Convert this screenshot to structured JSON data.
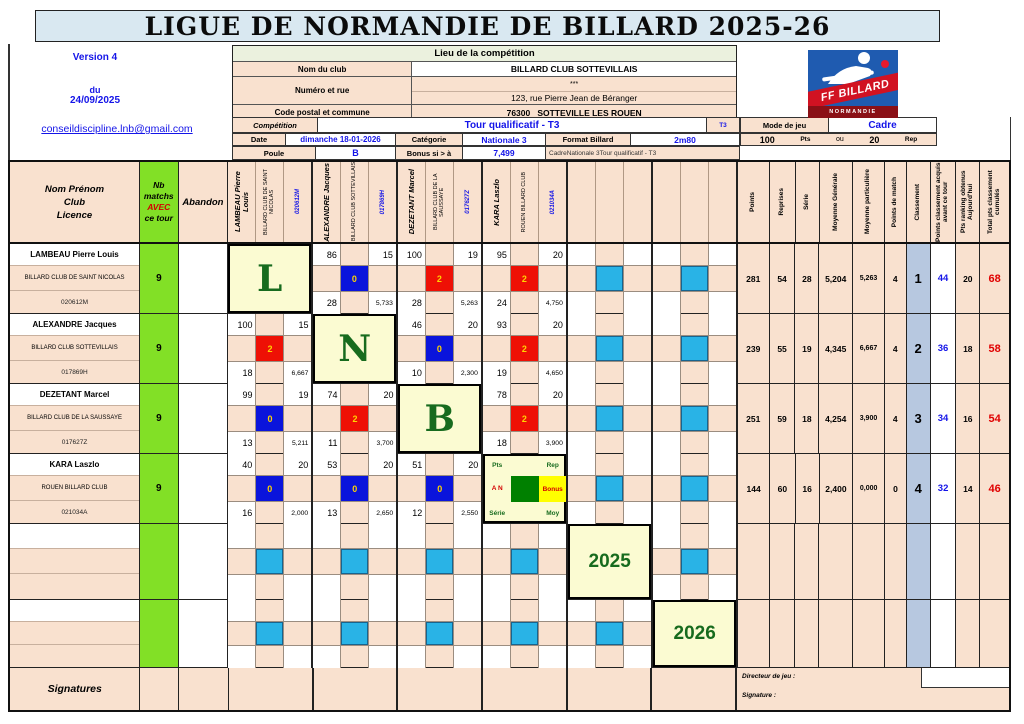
{
  "title": "LIGUE DE NORMANDIE DE BILLARD 2025-26",
  "version": {
    "line1": "Version 4",
    "line2": "du",
    "line3": "24/09/2025"
  },
  "email": "conseildiscipline.lnb@gmail.com",
  "venue": {
    "header": "Lieu de la compétition",
    "club_label": "Nom du club",
    "club": "BILLARD CLUB SOTTEVILLAIS",
    "street_label": "Numéro et rue",
    "street1": "***",
    "street2": "123, rue Pierre Jean de Béranger",
    "city_label": "Code postal et commune",
    "city": "76300   SOTTEVILLE LES ROUEN"
  },
  "competition": {
    "label": "Compétition",
    "value": "Tour qualificatif - T3",
    "tag": "T3",
    "date_label": "Date",
    "date": "dimanche 18-01-2026",
    "category_label": "Catégorie",
    "category": "Nationale 3",
    "format_label": "Format Billard",
    "format": "2m80",
    "poule_label": "Poule",
    "poule": "B",
    "bonus_label": "Bonus si > à",
    "bonus": "7,499",
    "note": "CadreNationale 3Tour qualificatif - T3",
    "mode_label": "Mode de jeu",
    "mode": "Cadre",
    "dist_pts": "100",
    "pts_label": "Pts",
    "ou": "ou",
    "dist_rep": "20",
    "rep_label": "Rep"
  },
  "logo": {
    "line1": "FF BILLARD",
    "line2": "NORMANDIE"
  },
  "colors": {
    "peach": "#f9e1cf",
    "green": "#82e026",
    "pale_yellow": "#fbfbd2",
    "cyan": "#29b3e6",
    "classement_blue": "#b7c8e0",
    "title_blue": "#d9e8f1",
    "blue_text": "#1414e8",
    "dark_green_text": "#176b1e",
    "red_text": "#e00000",
    "bonus_blue": "#0a14dc",
    "bonus_red": "#ee1005"
  },
  "table": {
    "name_header": [
      "Nom  Prénom",
      "Club",
      "Licence"
    ],
    "nb_header": [
      "Nb",
      "matchs",
      "AVEC",
      "ce tour"
    ],
    "abandon_header": "Abandon",
    "stat_headers": [
      "Points",
      "Reprises",
      "Série",
      "Moyenne Générale",
      "Moyenne particulière",
      "Points de match",
      "Classement",
      "Points  classement acquis avant ce tour",
      "Pts ranking obtenus Aujourd'hui",
      "Total pts classement cumulés"
    ],
    "legend": {
      "pts": "Pts",
      "rep": "Rep",
      "an": "A N",
      "bonus": "Bonus",
      "serie": "Série",
      "moy": "Moy"
    },
    "players": [
      {
        "name": "LAMBEAU Pierre Louis",
        "club": "BILLARD CLUB DE SAINT NICOLAS",
        "licence": "020612M"
      },
      {
        "name": "ALEXANDRE Jacques",
        "club": "BILLARD CLUB SOTTEVILLAIS",
        "licence": "017869H"
      },
      {
        "name": "DEZETANT Marcel",
        "club": "BILLARD CLUB DE LA SAUSSAYE",
        "licence": "017627Z"
      },
      {
        "name": "KARA Laszlo",
        "club": "ROUEN BILLARD CLUB",
        "licence": "021034A"
      },
      {
        "name": "",
        "club": "",
        "licence": ""
      },
      {
        "name": "",
        "club": "",
        "licence": ""
      }
    ],
    "rows": [
      {
        "nb": "9",
        "abandon": "",
        "matches": [
          {
            "type": "diag",
            "label": "L"
          },
          {
            "type": "played",
            "pts": "86",
            "rep": "15",
            "bonus": "0",
            "bonus_color": "blue",
            "serie": "28",
            "moy": "5,733"
          },
          {
            "type": "played",
            "pts": "100",
            "rep": "19",
            "bonus": "2",
            "bonus_color": "red",
            "serie": "28",
            "moy": "5,263"
          },
          {
            "type": "played",
            "pts": "95",
            "rep": "20",
            "bonus": "2",
            "bonus_color": "red",
            "serie": "24",
            "moy": "4,750"
          },
          {
            "type": "pending"
          },
          {
            "type": "pending"
          }
        ],
        "stats": {
          "points": "281",
          "reprises": "54",
          "serie": "28",
          "moy_gen": "5,204",
          "moy_part": "5,263",
          "pts_match": "4",
          "classement": "1",
          "pts_avant": "44",
          "pts_ranking": "20",
          "total": "68"
        }
      },
      {
        "nb": "9",
        "abandon": "",
        "matches": [
          {
            "type": "played",
            "pts": "100",
            "rep": "15",
            "bonus": "2",
            "bonus_color": "red",
            "serie": "18",
            "moy": "6,667"
          },
          {
            "type": "diag",
            "label": "N"
          },
          {
            "type": "played",
            "pts": "46",
            "rep": "20",
            "bonus": "0",
            "bonus_color": "blue",
            "serie": "10",
            "moy": "2,300"
          },
          {
            "type": "played",
            "pts": "93",
            "rep": "20",
            "bonus": "2",
            "bonus_color": "red",
            "serie": "19",
            "moy": "4,650"
          },
          {
            "type": "pending"
          },
          {
            "type": "pending"
          }
        ],
        "stats": {
          "points": "239",
          "reprises": "55",
          "serie": "19",
          "moy_gen": "4,345",
          "moy_part": "6,667",
          "pts_match": "4",
          "classement": "2",
          "pts_avant": "36",
          "pts_ranking": "18",
          "total": "58"
        }
      },
      {
        "nb": "9",
        "abandon": "",
        "matches": [
          {
            "type": "played",
            "pts": "99",
            "rep": "19",
            "bonus": "0",
            "bonus_color": "blue",
            "serie": "13",
            "moy": "5,211"
          },
          {
            "type": "played",
            "pts": "74",
            "rep": "20",
            "bonus": "2",
            "bonus_color": "red",
            "serie": "11",
            "moy": "3,700"
          },
          {
            "type": "diag",
            "label": "B"
          },
          {
            "type": "played",
            "pts": "78",
            "rep": "20",
            "bonus": "2",
            "bonus_color": "red",
            "serie": "18",
            "moy": "3,900"
          },
          {
            "type": "pending"
          },
          {
            "type": "pending"
          }
        ],
        "stats": {
          "points": "251",
          "reprises": "59",
          "serie": "18",
          "moy_gen": "4,254",
          "moy_part": "3,900",
          "pts_match": "4",
          "classement": "3",
          "pts_avant": "34",
          "pts_ranking": "16",
          "total": "54"
        }
      },
      {
        "nb": "9",
        "abandon": "",
        "matches": [
          {
            "type": "played",
            "pts": "40",
            "rep": "20",
            "bonus": "0",
            "bonus_color": "blue",
            "serie": "16",
            "moy": "2,000"
          },
          {
            "type": "played",
            "pts": "53",
            "rep": "20",
            "bonus": "0",
            "bonus_color": "blue",
            "serie": "13",
            "moy": "2,650"
          },
          {
            "type": "played",
            "pts": "51",
            "rep": "20",
            "bonus": "0",
            "bonus_color": "blue",
            "serie": "12",
            "moy": "2,550"
          },
          {
            "type": "legend"
          },
          {
            "type": "pending"
          },
          {
            "type": "pending"
          }
        ],
        "stats": {
          "points": "144",
          "reprises": "60",
          "serie": "16",
          "moy_gen": "2,400",
          "moy_part": "0,000",
          "pts_match": "0",
          "classement": "4",
          "pts_avant": "32",
          "pts_ranking": "14",
          "total": "46"
        }
      },
      {
        "nb": "",
        "abandon": "",
        "matches": [
          {
            "type": "pending"
          },
          {
            "type": "pending"
          },
          {
            "type": "pending"
          },
          {
            "type": "pending"
          },
          {
            "type": "diag",
            "label": "2025"
          },
          {
            "type": "pending"
          }
        ],
        "stats": {
          "points": "",
          "reprises": "",
          "serie": "",
          "moy_gen": "",
          "moy_part": "",
          "pts_match": "",
          "classement": "",
          "pts_avant": "",
          "pts_ranking": "",
          "total": ""
        }
      },
      {
        "nb": "",
        "abandon": "",
        "matches": [
          {
            "type": "pending"
          },
          {
            "type": "pending"
          },
          {
            "type": "pending"
          },
          {
            "type": "pending"
          },
          {
            "type": "pending"
          },
          {
            "type": "diag",
            "label": "2026"
          }
        ],
        "stats": {
          "points": "",
          "reprises": "",
          "serie": "",
          "moy_gen": "",
          "moy_part": "",
          "pts_match": "",
          "classement": "",
          "pts_avant": "",
          "pts_ranking": "",
          "total": ""
        }
      }
    ],
    "signatures_label": "Signatures",
    "footer": {
      "director_label": "Directeur de jeu :",
      "signature_label": "Signature :"
    }
  }
}
